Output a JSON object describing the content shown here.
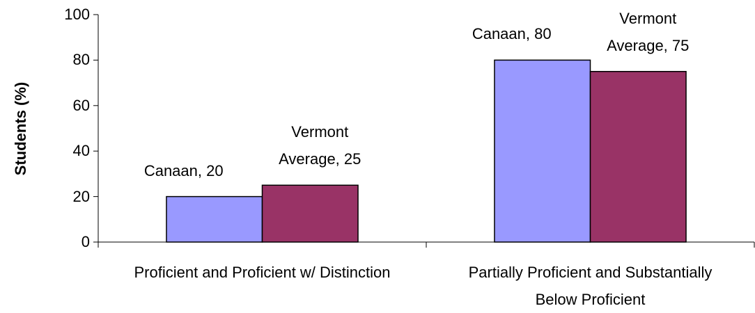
{
  "chart_data": {
    "type": "bar",
    "y_label": "Students (%)",
    "categories": [
      "Proficient and Proficient w/ Distinction",
      "Partially Proficient and Substantially Below Proficient"
    ],
    "series": [
      {
        "name": "Canaan",
        "color": "#9999ff",
        "values": [
          20,
          80
        ],
        "value_labels": [
          "Canaan, 20",
          "Canaan, 80"
        ]
      },
      {
        "name": "Vermont Average",
        "color": "#993366",
        "values": [
          25,
          75
        ],
        "value_labels": [
          "Vermont Average, 25",
          "Vermont Average, 75"
        ]
      }
    ],
    "ylim": [
      0,
      100
    ],
    "yticks": [
      0,
      20,
      40,
      60,
      80,
      100
    ]
  }
}
